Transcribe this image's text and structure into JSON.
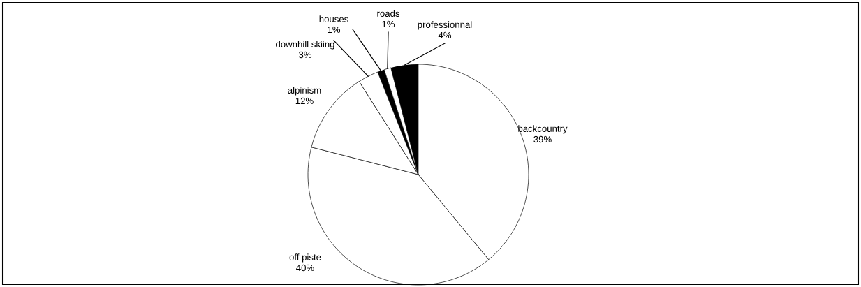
{
  "chart_data": {
    "type": "pie",
    "categories": [
      "backcountry",
      "off piste",
      "alpinism",
      "downhill skiing",
      "houses",
      "roads",
      "professionnal"
    ],
    "values": [
      39,
      40,
      12,
      3,
      1,
      1,
      4
    ],
    "value_labels": [
      "39%",
      "40%",
      "12%",
      "3%",
      "1%",
      "1%",
      "4%"
    ],
    "colors": [
      "#ffffff",
      "#ffffff",
      "#ffffff",
      "#ffffff",
      "#000000",
      "#ffffff",
      "#000000"
    ],
    "legend": false
  }
}
